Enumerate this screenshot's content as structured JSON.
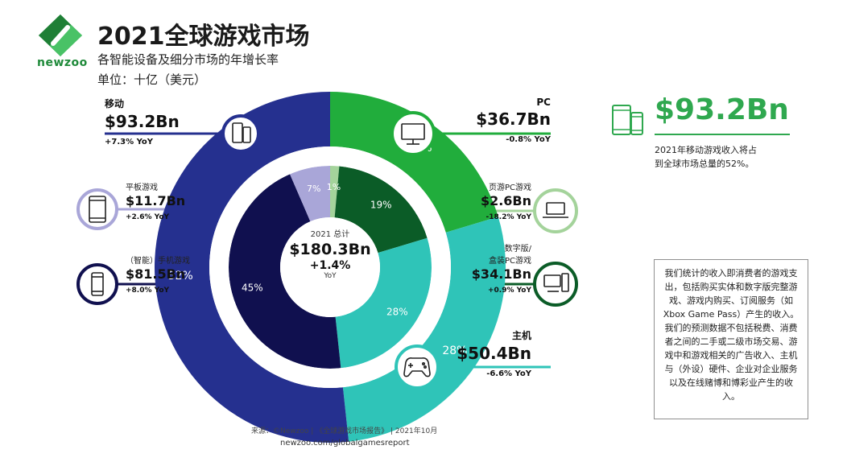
{
  "header": {
    "logo_text": "newzoo",
    "title": "2021全球游戏市场",
    "subtitle": "各智能设备及细分市场的年增长率",
    "unit": "单位：十亿（美元）"
  },
  "center": {
    "label": "2021 总计",
    "total": "$180.3Bn",
    "growth": "+1.4%",
    "growth_label": "YoY"
  },
  "segments": {
    "mobile": {
      "name": "移动",
      "value": "$93.2Bn",
      "yoy": "+7.3% YoY",
      "icon": "phone-tablet-icon"
    },
    "tablet": {
      "name": "平板游戏",
      "value": "$11.7Bn",
      "yoy": "+2.6% YoY",
      "icon": "tablet-icon"
    },
    "smartphone": {
      "name": "（智能）手机游戏",
      "value": "$81.5Bn",
      "yoy": "+8.0% YoY",
      "icon": "smartphone-icon"
    },
    "pc": {
      "name": "PC",
      "value": "$36.7Bn",
      "yoy": "-0.8% YoY",
      "icon": "monitor-icon"
    },
    "browser_pc": {
      "name": "页游PC游戏",
      "value": "$2.6Bn",
      "yoy": "-18.2% YoY",
      "icon": "laptop-icon"
    },
    "boxed_pc": {
      "name_line1": "数字版/",
      "name_line2": "盒装PC游戏",
      "value": "$34.1Bn",
      "yoy": "+0.9% YoY",
      "icon": "desktop-pc-icon"
    },
    "console": {
      "name": "主机",
      "value": "$50.4Bn",
      "yoy": "-6.6% YoY",
      "icon": "gamepad-icon"
    }
  },
  "highlight": {
    "value": "$93.2Bn",
    "note_line1": "2021年移动游戏收入将占",
    "note_line2": "到全球市场总量的52%。"
  },
  "note": {
    "text": "我们统计的收入即消费者的游戏支出，包括购买实体和数字版完整游戏、游戏内购买、订阅服务（如Xbox Game Pass）产生的收入。我们的预测数据不包括税费、消费者之间的二手或二级市场交易、游戏中和游戏相关的广告收入、主机与（外设）硬件、企业对企业服务以及在线赌博和博彩业产生的收入。"
  },
  "footer": {
    "source": "来源：©Newzoo | 《全球游戏市场报告》 | 2021年10月",
    "url": "newzoo.com/globalgamesreport"
  },
  "colors": {
    "mobile": "#25308f",
    "smartphone": "#10104f",
    "tablet": "#a9a6d8",
    "pc": "#21ad3c",
    "boxed_pc": "#0b5c27",
    "browser_pc": "#a4d39b",
    "console": "#2fc4b8",
    "console_inner": "#2fc4b8"
  },
  "chart_data": {
    "type": "pie",
    "title": "2021全球游戏市场",
    "outer_ring": [
      {
        "name": "移动",
        "value": 93.2,
        "percent_label": "52%"
      },
      {
        "name": "主机",
        "value": 50.4,
        "percent_label": "28%"
      },
      {
        "name": "PC",
        "value": 36.7,
        "percent_label": "20%"
      }
    ],
    "inner_ring": [
      {
        "name": "（智能）手机游戏",
        "value": 81.5,
        "percent_label": "45%"
      },
      {
        "name": "平板游戏",
        "value": 11.7,
        "percent_label": "7%"
      },
      {
        "name": "页游PC游戏",
        "value": 2.6,
        "percent_label": "1%"
      },
      {
        "name": "数字版/盒装PC游戏",
        "value": 34.1,
        "percent_label": "19%"
      },
      {
        "name": "主机",
        "value": 50.4,
        "percent_label": "28%"
      }
    ],
    "total": 180.3
  }
}
